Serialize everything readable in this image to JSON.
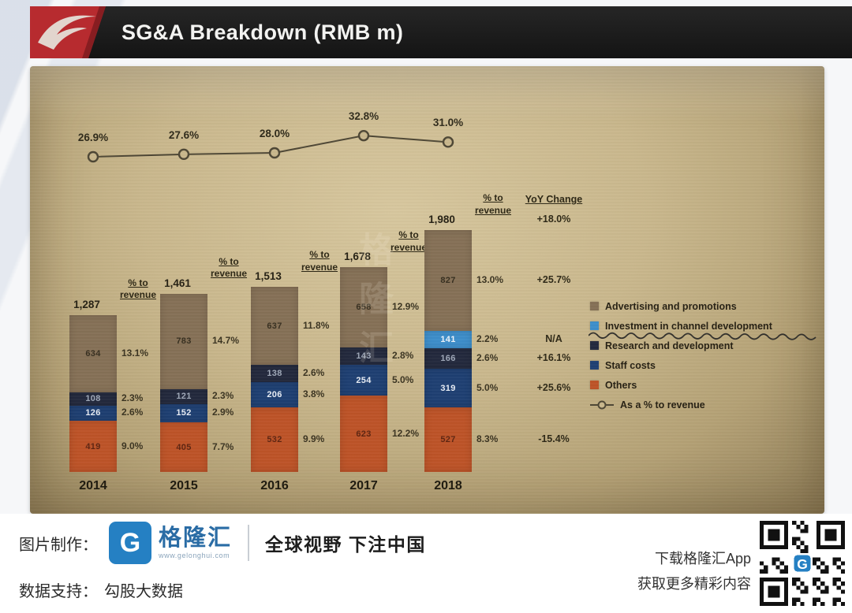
{
  "header": {
    "title": "SG&A Breakdown (RMB m)"
  },
  "slide": {
    "watermark": "格隆汇"
  },
  "chart_data": {
    "type": "bar",
    "title": "SG&A Breakdown (RMB m)",
    "unit": "RMB m",
    "categories": [
      "2014",
      "2015",
      "2016",
      "2017",
      "2018"
    ],
    "totals": {
      "labels": [
        "1,287",
        "1,461",
        "1,513",
        "1,678",
        "1,980"
      ],
      "values": [
        1287,
        1461,
        1513,
        1678,
        1980
      ],
      "yoy_2018": "+18.0%"
    },
    "pct_header_lines": [
      "% to",
      "revenue"
    ],
    "yoy_header": "YoY Change",
    "series": [
      {
        "key": "advertising-and-promotions",
        "name": "Advertising and promotions",
        "color": "#857056",
        "text_color": "#362e1f",
        "values": [
          634,
          783,
          637,
          658,
          827
        ],
        "pct": [
          "13.1%",
          "14.7%",
          "11.8%",
          "12.9%",
          "13.0%"
        ],
        "yoy": "+25.7%"
      },
      {
        "key": "investment-in-channel-development",
        "name": "Investment in channel development",
        "color": "#3d8ecb",
        "text_color": "#eef5fb",
        "values": [
          null,
          null,
          null,
          null,
          141
        ],
        "pct": [
          null,
          null,
          null,
          null,
          "2.2%"
        ],
        "yoy": "N/A"
      },
      {
        "key": "research-and-development",
        "name": "Research and development",
        "color": "#23293d",
        "text_color": "#9fa8b8",
        "values": [
          108,
          121,
          138,
          143,
          166
        ],
        "pct": [
          "2.3%",
          "2.3%",
          "2.6%",
          "2.8%",
          "2.6%"
        ],
        "yoy": "+16.1%"
      },
      {
        "key": "staff-costs",
        "name": "Staff costs",
        "color": "#1e3f72",
        "text_color": "#e8edf5",
        "values": [
          126,
          152,
          206,
          254,
          319
        ],
        "pct": [
          "2.6%",
          "2.9%",
          "3.8%",
          "5.0%",
          "5.0%"
        ],
        "yoy": "+25.6%"
      },
      {
        "key": "others",
        "name": "Others",
        "color": "#bd5327",
        "text_color": "#5e2410",
        "values": [
          419,
          405,
          532,
          623,
          527
        ],
        "pct": [
          "9.0%",
          "7.7%",
          "9.9%",
          "12.2%",
          "8.3%"
        ],
        "yoy": "-15.4%"
      }
    ],
    "line": {
      "name": "As a % to revenue",
      "values": [
        26.9,
        27.6,
        28.0,
        32.8,
        31.0
      ],
      "labels": [
        "26.9%",
        "27.6%",
        "28.0%",
        "32.8%",
        "31.0%"
      ]
    },
    "legend_position": "right",
    "ylim": [
      0,
      2100
    ]
  },
  "footer": {
    "credit_label": "图片制作：",
    "brand_letter": "G",
    "brand_name": "格隆汇",
    "brand_url": "www.gelonghui.com",
    "slogan": "全球视野 下注中国",
    "data_label": "数据支持：",
    "data_source": "勾股大数据",
    "promo_line1": "下载格隆汇App",
    "promo_line2": "获取更多精彩内容"
  }
}
